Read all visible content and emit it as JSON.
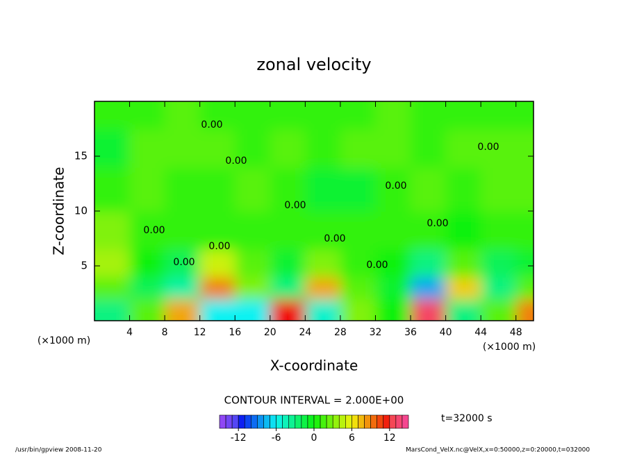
{
  "chart_data": {
    "type": "contour",
    "title": "zonal velocity",
    "xlabel": "X-coordinate",
    "ylabel": "Z-coordinate",
    "xunit": "(×1000 m)",
    "yunit": "(×1000 m)",
    "xlim": [
      0,
      50
    ],
    "ylim": [
      0,
      20
    ],
    "xticks": [
      4,
      8,
      12,
      16,
      20,
      24,
      28,
      32,
      36,
      40,
      44,
      48
    ],
    "yticks": [
      5,
      10,
      15
    ],
    "x": [
      2,
      6,
      10,
      14,
      18,
      22,
      26,
      30,
      34,
      38,
      42,
      46,
      50
    ],
    "z": [
      1,
      3,
      5,
      8,
      12,
      16,
      19
    ],
    "values": [
      [
        -3,
        2,
        8,
        -6,
        -6,
        12,
        -5,
        3,
        0,
        13,
        -3,
        2,
        9
      ],
      [
        2,
        -2,
        -4,
        9,
        3,
        -3,
        8,
        2,
        -1,
        -8,
        7,
        -3,
        2
      ],
      [
        4,
        0,
        -2,
        5,
        2,
        -1,
        3,
        1,
        0,
        -3,
        2,
        -2,
        -1
      ],
      [
        3,
        1,
        1,
        1,
        1,
        1,
        1,
        1,
        1,
        1,
        0,
        1,
        1
      ],
      [
        1,
        2,
        1,
        1,
        2,
        1,
        -1,
        -1,
        1,
        2,
        1,
        2,
        2
      ],
      [
        -1,
        2,
        2,
        2,
        1,
        2,
        1,
        2,
        2,
        1,
        2,
        2,
        2
      ],
      [
        1,
        1,
        2,
        1,
        1,
        1,
        1,
        1,
        2,
        1,
        1,
        1,
        1
      ]
    ],
    "contour_label": "0.00",
    "contour_interval": "CONTOUR INTERVAL = 2.000E+00",
    "time_label": "t=32000 s",
    "colorbar": {
      "lim": [
        -15,
        15
      ],
      "ticks": [
        -12,
        -6,
        0,
        6,
        12
      ]
    },
    "footer_left": "/usr/bin/gpview  2008-11-20",
    "footer_right": "MarsCond_VelX.nc@VelX,x=0:50000,z=0:20000,t=032000"
  }
}
